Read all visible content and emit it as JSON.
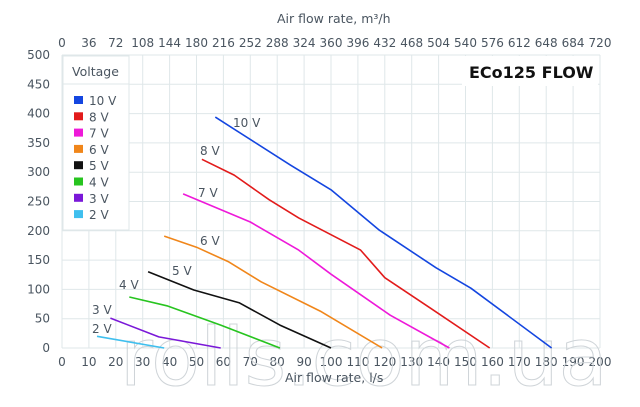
{
  "chart_data": {
    "type": "line",
    "title": "ECo125 FLOW",
    "xlabel": "Air flow rate, l/s",
    "x2label": "Air flow rate, m³/h",
    "ylabel": "",
    "xlim": [
      0,
      200
    ],
    "ylim": [
      0,
      500
    ],
    "grid": true,
    "x_ticks": [
      0,
      10,
      20,
      30,
      40,
      50,
      60,
      70,
      80,
      90,
      100,
      110,
      120,
      130,
      140,
      150,
      160,
      170,
      180,
      190,
      200
    ],
    "x2_ticks": [
      0,
      36,
      72,
      108,
      144,
      180,
      216,
      252,
      288,
      324,
      360,
      396,
      432,
      468,
      504,
      540,
      576,
      612,
      648,
      684,
      720
    ],
    "y_ticks": [
      0,
      50,
      100,
      150,
      200,
      250,
      300,
      350,
      400,
      450,
      500
    ],
    "legend": {
      "title": "Voltage",
      "position": "upper-left"
    },
    "series": [
      {
        "name": "10 V",
        "color": "#1446e0",
        "x": [
          57,
          85,
          100,
          118,
          139,
          152,
          182
        ],
        "y": [
          394,
          312,
          270,
          201,
          137,
          102,
          0
        ]
      },
      {
        "name": "8 V",
        "color": "#e21b1b",
        "x": [
          52,
          64,
          77,
          88,
          111,
          120,
          137,
          159
        ],
        "y": [
          322,
          295,
          253,
          222,
          167,
          120,
          68,
          0
        ]
      },
      {
        "name": "7 V",
        "color": "#ee19d9",
        "x": [
          45,
          70,
          88,
          100,
          122,
          144
        ],
        "y": [
          263,
          215,
          167,
          126,
          56,
          0
        ]
      },
      {
        "name": "6 V",
        "color": "#f0861a",
        "x": [
          38,
          50,
          62,
          74,
          96,
          119
        ],
        "y": [
          191,
          172,
          147,
          113,
          63,
          0
        ]
      },
      {
        "name": "5 V",
        "color": "#111111",
        "x": [
          32,
          49,
          66,
          81,
          100
        ],
        "y": [
          130,
          99,
          77,
          39,
          0
        ]
      },
      {
        "name": "4 V",
        "color": "#27c41f",
        "x": [
          25,
          39,
          59,
          81
        ],
        "y": [
          87,
          72,
          39,
          0
        ]
      },
      {
        "name": "3 V",
        "color": "#7a18d8",
        "x": [
          18,
          36,
          59
        ],
        "y": [
          51,
          19,
          0
        ]
      },
      {
        "name": "2 V",
        "color": "#3fbfee",
        "x": [
          13,
          38
        ],
        "y": [
          20,
          0
        ]
      }
    ]
  },
  "watermark": "rolls.com.ua"
}
